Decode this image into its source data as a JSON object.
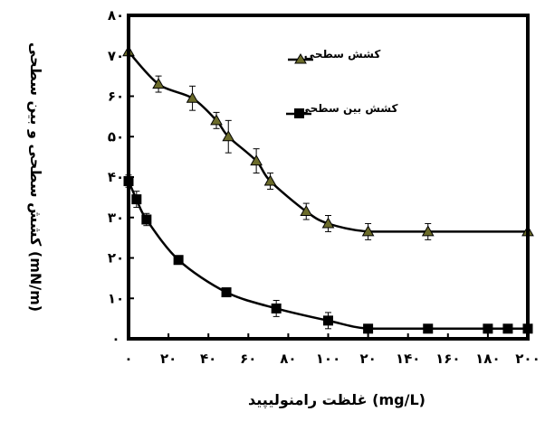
{
  "chart_data": {
    "type": "line",
    "title": "",
    "xlabel": "غلظت رامنولیپید (mg/L)",
    "ylabel": "کشش سطحی و بین سطحی (mN/m)",
    "xlim": [
      0,
      200
    ],
    "ylim": [
      0,
      80
    ],
    "x_tick_labels": [
      "۰",
      "۲۰",
      "۴۰",
      "۶۰",
      "۸۰",
      "۱۰۰",
      "۲۰",
      "۱۴۰",
      "۱۶۰",
      "۱۸۰",
      "۲۰۰"
    ],
    "y_tick_labels": [
      "۰",
      "۱۰",
      "۲۰",
      "۳۰",
      "۴۰",
      "۵۰",
      "۶۰",
      "۷۰",
      "۸۰"
    ],
    "legend_position": "top-right",
    "grid": false,
    "series": [
      {
        "name": "کشش سطحی",
        "marker": "triangle",
        "marker_color": "#6b6b2a",
        "x": [
          0,
          15,
          32,
          44,
          50,
          64,
          71,
          89,
          100,
          120,
          150,
          200
        ],
        "y": [
          71,
          63,
          59.5,
          54,
          50,
          44,
          39,
          31.5,
          28.5,
          26.5,
          26.5,
          26.5
        ],
        "error": [
          0,
          2,
          3,
          2,
          4,
          3,
          2,
          2,
          2,
          2,
          2,
          0
        ]
      },
      {
        "name": "کشش بین سطحی",
        "marker": "square",
        "marker_color": "#000000",
        "x": [
          0,
          4,
          9,
          25,
          49,
          74,
          100,
          120,
          150,
          180,
          190,
          200
        ],
        "y": [
          39,
          34.5,
          29.5,
          19.5,
          11.5,
          7.5,
          4.5,
          2.5,
          2.5,
          2.5,
          2.5,
          2.5
        ],
        "error": [
          1.5,
          2,
          1.5,
          0,
          0,
          2,
          2,
          0,
          0,
          0,
          0,
          0
        ]
      }
    ]
  }
}
